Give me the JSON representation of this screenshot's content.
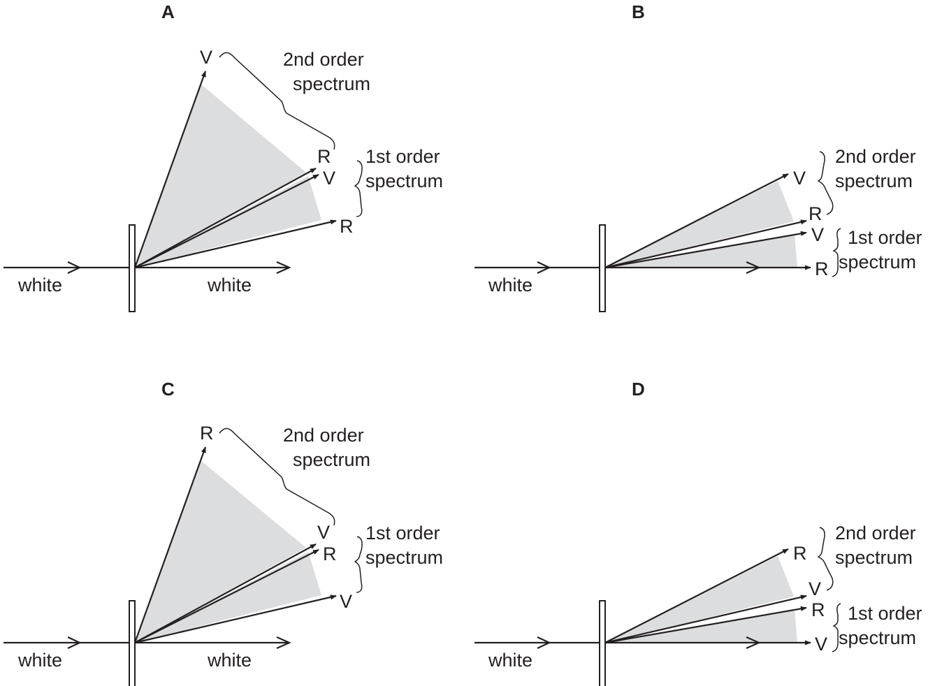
{
  "colors": {
    "ink": "#231f20",
    "shade": "#dcdddf"
  },
  "panels": [
    {
      "letter": "A",
      "incident_label": "white",
      "transmitted_label": "white",
      "second_order": {
        "upper_end": "V",
        "lower_end": "R",
        "label_line1": "2nd order",
        "label_line2": "spectrum"
      },
      "first_order": {
        "upper_end": "V",
        "lower_end": "R",
        "label_line1": "1st order",
        "label_line2": "spectrum"
      }
    },
    {
      "letter": "B",
      "incident_label": "white",
      "second_order": {
        "upper_end": "V",
        "lower_end": "R",
        "label_line1": "2nd order",
        "label_line2": "spectrum"
      },
      "first_order": {
        "upper_end": "V",
        "lower_end": "R",
        "label_line1": "1st order",
        "label_line2": "spectrum"
      }
    },
    {
      "letter": "C",
      "incident_label": "white",
      "transmitted_label": "white",
      "second_order": {
        "upper_end": "R",
        "lower_end": "V",
        "label_line1": "2nd order",
        "label_line2": "spectrum"
      },
      "first_order": {
        "upper_end": "R",
        "lower_end": "V",
        "label_line1": "1st order",
        "label_line2": "spectrum"
      }
    },
    {
      "letter": "D",
      "incident_label": "white",
      "second_order": {
        "upper_end": "R",
        "lower_end": "V",
        "label_line1": "2nd order",
        "label_line2": "spectrum"
      },
      "first_order": {
        "upper_end": "R",
        "lower_end": "V",
        "label_line1": "1st order",
        "label_line2": "spectrum"
      }
    }
  ]
}
